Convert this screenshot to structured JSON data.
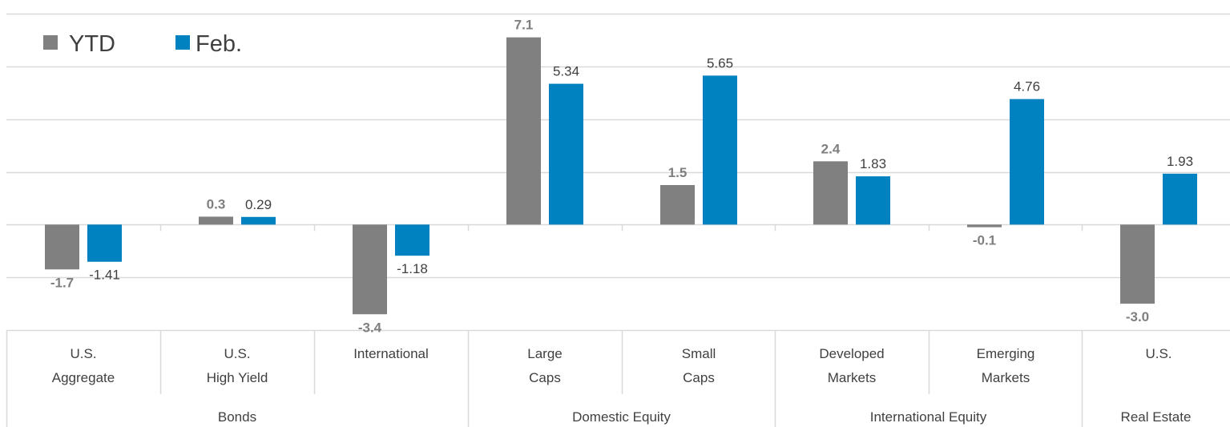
{
  "chart_data": {
    "type": "bar",
    "categories": [
      [
        "U.S.",
        "Aggregate"
      ],
      [
        "U.S.",
        "High Yield"
      ],
      [
        "International"
      ],
      [
        "Large",
        "Caps"
      ],
      [
        "Small",
        "Caps"
      ],
      [
        "Developed",
        "Markets"
      ],
      [
        "Emerging",
        "Markets"
      ],
      [
        "U.S."
      ]
    ],
    "groups": [
      {
        "label": "Bonds",
        "span": 3
      },
      {
        "label": "Domestic Equity",
        "span": 2
      },
      {
        "label": "International Equity",
        "span": 2
      },
      {
        "label": "Real Estate",
        "span": 1
      }
    ],
    "series": [
      {
        "name": "YTD",
        "color": "#808080",
        "values": [
          -1.7,
          0.3,
          -3.4,
          7.1,
          1.5,
          2.4,
          -0.1,
          -3.0
        ],
        "labels": [
          "-1.7",
          "0.3",
          "-3.4",
          "7.1",
          "1.5",
          "2.4",
          "-0.1",
          "-3.0"
        ]
      },
      {
        "name": "Feb.",
        "color": "#0082c0",
        "values": [
          -1.41,
          0.29,
          -1.18,
          5.34,
          5.65,
          1.83,
          4.76,
          1.93
        ],
        "labels": [
          "-1.41",
          "0.29",
          "-1.18",
          "5.34",
          "5.65",
          "1.83",
          "4.76",
          "1.93"
        ]
      }
    ],
    "ylim": [
      -4,
      8
    ],
    "y_gridlines": [
      -4,
      -2,
      0,
      2,
      4,
      6,
      8
    ],
    "grid": true,
    "legend": "top-left"
  }
}
